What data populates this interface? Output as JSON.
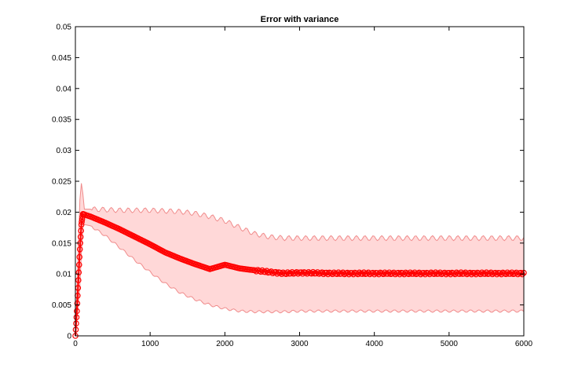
{
  "chart_data": {
    "type": "line",
    "title": "Error with variance",
    "xlabel": "",
    "ylabel": "",
    "xlim": [
      0,
      6000
    ],
    "ylim": [
      0,
      0.05
    ],
    "x_ticks": [
      "0",
      "1000",
      "2000",
      "3000",
      "4000",
      "5000",
      "6000"
    ],
    "y_ticks": [
      "0",
      "0.005",
      "0.01",
      "0.015",
      "0.02",
      "0.025",
      "0.03",
      "0.035",
      "0.04",
      "0.045",
      "0.05"
    ],
    "grid": false,
    "legend": "none",
    "series": [
      {
        "marker": "circle",
        "color": "#ff0000",
        "x": [
          0,
          20,
          40,
          60,
          80,
          100,
          200,
          400,
          600,
          800,
          1000,
          1200,
          1400,
          1600,
          1800,
          2000,
          2200,
          2400,
          2600,
          2800,
          3000,
          3500,
          4000,
          4500,
          5000,
          5500,
          6000
        ],
        "y": [
          0.0,
          0.004,
          0.009,
          0.014,
          0.018,
          0.0197,
          0.0193,
          0.0183,
          0.0172,
          0.016,
          0.0148,
          0.0135,
          0.0125,
          0.0116,
          0.0108,
          0.0115,
          0.0109,
          0.0106,
          0.0103,
          0.0101,
          0.0102,
          0.0101,
          0.0101,
          0.0101,
          0.0101,
          0.0101,
          0.0101
        ]
      }
    ],
    "band": {
      "color": "#ffd8d8",
      "edge_color": "#f08c8c",
      "x": [
        0,
        60,
        90,
        100,
        120,
        200,
        400,
        600,
        800,
        1000,
        1200,
        1400,
        1600,
        1800,
        2000,
        2200,
        2400,
        2600,
        2800,
        3000,
        3500,
        4000,
        4500,
        5000,
        5500,
        6000
      ],
      "upper": [
        0.0,
        0.022,
        0.026,
        0.023,
        0.0205,
        0.0205,
        0.0204,
        0.0203,
        0.0203,
        0.0203,
        0.0202,
        0.0201,
        0.0198,
        0.0193,
        0.0186,
        0.0175,
        0.0165,
        0.016,
        0.0158,
        0.0158,
        0.0158,
        0.0158,
        0.0158,
        0.0158,
        0.0158,
        0.0158
      ],
      "lower": [
        0.0,
        0.008,
        0.016,
        0.0175,
        0.018,
        0.0178,
        0.0162,
        0.0142,
        0.0122,
        0.0103,
        0.0085,
        0.007,
        0.0059,
        0.005,
        0.0044,
        0.004,
        0.0039,
        0.0039,
        0.0039,
        0.004,
        0.004,
        0.004,
        0.004,
        0.004,
        0.004,
        0.004
      ]
    }
  }
}
